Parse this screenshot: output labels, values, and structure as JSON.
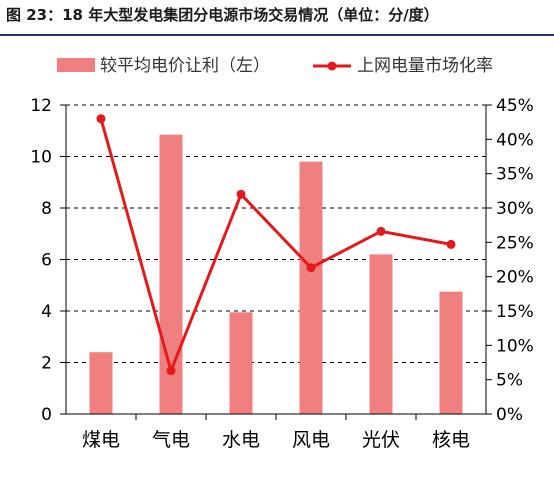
{
  "title": "图 23：18 年大型发电集团分电源市场交易情况（单位：分/度）",
  "colors": {
    "bar": "#f08080",
    "line": "#e31a1c",
    "axis": "#000000",
    "grid": "#000000",
    "rule": "#1f3864"
  },
  "chart_data": {
    "type": "bar",
    "categories": [
      "煤电",
      "气电",
      "水电",
      "风电",
      "光伏",
      "核电"
    ],
    "series": [
      {
        "name": "较平均电价让利（左）",
        "type": "bar",
        "axis": "left",
        "values": [
          2.4,
          10.85,
          3.95,
          9.8,
          6.2,
          4.75
        ]
      },
      {
        "name": "上网电量市场化率",
        "type": "line",
        "axis": "right",
        "values": [
          43,
          6.3,
          32,
          21.3,
          26.6,
          24.7
        ]
      }
    ],
    "y_left": {
      "min": 0,
      "max": 12,
      "step": 2,
      "tick_labels": [
        "0",
        "2",
        "4",
        "6",
        "8",
        "10",
        "12"
      ]
    },
    "y_right": {
      "min": 0,
      "max": 45,
      "step": 5,
      "tick_labels": [
        "0%",
        "5%",
        "10%",
        "15%",
        "20%",
        "25%",
        "30%",
        "35%",
        "40%",
        "45%"
      ]
    },
    "grid": true,
    "legend_position": "top"
  }
}
